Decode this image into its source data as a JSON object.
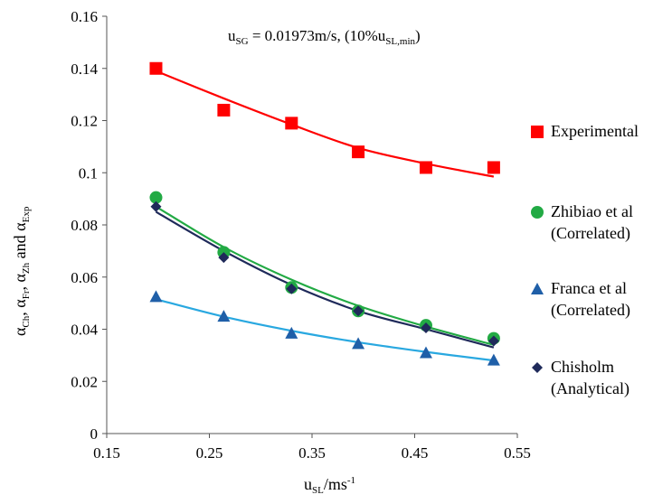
{
  "chart_data": {
    "type": "scatter",
    "annotation": {
      "base": "u",
      "base_sub": "SG",
      "eq": " = 0.01973m/s, (10%u",
      "tail_sub": "SL,min",
      "tail": ")"
    },
    "xlabel": {
      "base": "u",
      "sub": "SL",
      "tail": "/ms",
      "sup": "-1"
    },
    "ylabel": {
      "p1": "α",
      "s1": "Ch",
      "p2": ", α",
      "s2": "Fr",
      "p3": ", α",
      "s3": "Zh",
      "p4": " and α",
      "s4": "Exp"
    },
    "xlim": [
      0.15,
      0.55
    ],
    "ylim": [
      0,
      0.16
    ],
    "x_ticks": [
      "0.15",
      "0.25",
      "0.35",
      "0.45",
      "0.55"
    ],
    "y_ticks": [
      "0",
      "0.02",
      "0.04",
      "0.06",
      "0.08",
      "0.1",
      "0.12",
      "0.14",
      "0.16"
    ],
    "x_tick_values": [
      0.15,
      0.25,
      0.35,
      0.45,
      0.55
    ],
    "y_tick_values": [
      0,
      0.02,
      0.04,
      0.06,
      0.08,
      0.1,
      0.12,
      0.14,
      0.16
    ],
    "x": [
      0.198,
      0.264,
      0.33,
      0.395,
      0.461,
      0.527
    ],
    "grid": false,
    "legend_position": "right",
    "series": [
      {
        "name_lines": [
          "Experimental"
        ],
        "marker": "square",
        "color": "#ff0000",
        "values": [
          0.14,
          0.124,
          0.119,
          0.108,
          0.102,
          0.102
        ],
        "trend": [
          0.139,
          0.1285,
          0.1185,
          0.1095,
          0.1035,
          0.0985
        ]
      },
      {
        "name_lines": [
          "Zhibiao et al",
          "(Correlated)"
        ],
        "marker": "circle",
        "color": "#22aa44",
        "values": [
          0.0905,
          0.0695,
          0.056,
          0.047,
          0.0415,
          0.0365
        ],
        "trend": [
          0.087,
          0.0715,
          0.059,
          0.049,
          0.041,
          0.034
        ]
      },
      {
        "name_lines": [
          "Franca et al",
          "(Correlated)"
        ],
        "marker": "triangle",
        "color": "#1f5fa8",
        "line_color": "#29a8e0",
        "values": [
          0.0525,
          0.045,
          0.0385,
          0.0345,
          0.031,
          0.0282
        ],
        "trend": [
          0.0515,
          0.0448,
          0.0394,
          0.035,
          0.0313,
          0.028
        ]
      },
      {
        "name_lines": [
          "Chisholm",
          "(Analytical)"
        ],
        "marker": "diamond",
        "color": "#1f2a5a",
        "values": [
          0.087,
          0.0675,
          0.0555,
          0.047,
          0.0405,
          0.0355
        ],
        "trend": [
          0.085,
          0.07,
          0.057,
          0.047,
          0.04,
          0.033
        ]
      }
    ]
  }
}
